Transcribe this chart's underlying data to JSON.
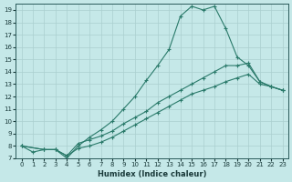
{
  "xlabel": "Humidex (Indice chaleur)",
  "bg_color": "#c5e8e8",
  "line_color": "#2a7a6a",
  "grid_color": "#aacfcf",
  "xlim": [
    -0.5,
    23.5
  ],
  "ylim": [
    7,
    19.5
  ],
  "xticks": [
    0,
    1,
    2,
    3,
    4,
    5,
    6,
    7,
    8,
    9,
    10,
    11,
    12,
    13,
    14,
    15,
    16,
    17,
    18,
    19,
    20,
    21,
    22,
    23
  ],
  "yticks": [
    7,
    8,
    9,
    10,
    11,
    12,
    13,
    14,
    15,
    16,
    17,
    18,
    19
  ],
  "line1_x": [
    0,
    1,
    2,
    3,
    4,
    5,
    6,
    7,
    8,
    9,
    10,
    11,
    12,
    13,
    14,
    15,
    16,
    17,
    18,
    19,
    20,
    21,
    22,
    23
  ],
  "line1_y": [
    8.0,
    7.5,
    7.7,
    7.7,
    7.0,
    8.0,
    8.7,
    9.3,
    10.0,
    11.0,
    12.0,
    13.3,
    14.5,
    15.8,
    18.5,
    19.3,
    19.0,
    19.3,
    17.5,
    15.2,
    14.5,
    13.2,
    12.8,
    12.5
  ],
  "line2_x": [
    0,
    2,
    3,
    4,
    5,
    6,
    7,
    8,
    9,
    10,
    11,
    12,
    13,
    14,
    15,
    16,
    17,
    18,
    19,
    20,
    21,
    22,
    23
  ],
  "line2_y": [
    8.0,
    7.7,
    7.7,
    7.2,
    8.2,
    8.5,
    8.8,
    9.2,
    9.8,
    10.3,
    10.8,
    11.5,
    12.0,
    12.5,
    13.0,
    13.5,
    14.0,
    14.5,
    14.5,
    14.7,
    13.2,
    12.8,
    12.5
  ],
  "line3_x": [
    0,
    2,
    3,
    4,
    5,
    6,
    7,
    8,
    9,
    10,
    11,
    12,
    13,
    14,
    15,
    16,
    17,
    18,
    19,
    20,
    21,
    22,
    23
  ],
  "line3_y": [
    8.0,
    7.7,
    7.7,
    7.2,
    7.8,
    8.0,
    8.3,
    8.7,
    9.2,
    9.7,
    10.2,
    10.7,
    11.2,
    11.7,
    12.2,
    12.5,
    12.8,
    13.2,
    13.5,
    13.8,
    13.0,
    12.8,
    12.5
  ]
}
